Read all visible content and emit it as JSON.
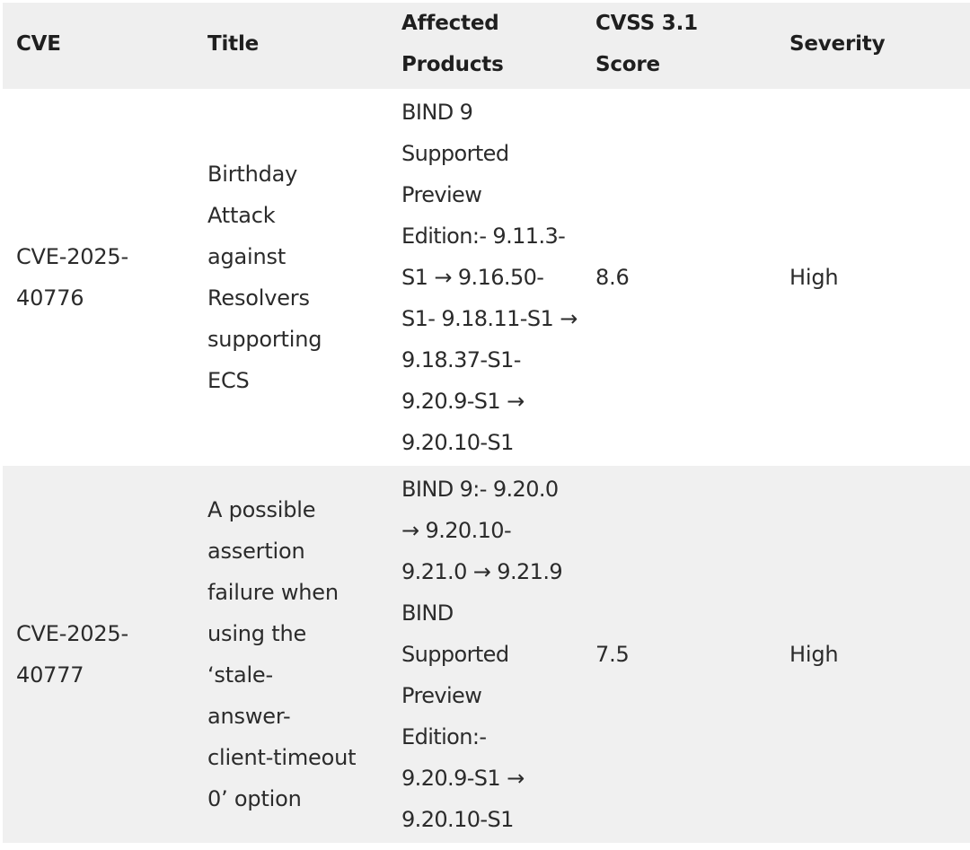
{
  "table": {
    "headers": {
      "cve": "CVE",
      "title": "Title",
      "products_1": "Affected",
      "products_2": "Products",
      "score_1": "CVSS 3.1",
      "score_2": "Score",
      "severity": "Severity"
    },
    "rows": [
      {
        "cve": [
          "CVE-2025-",
          "40776"
        ],
        "title": [
          "Birthday",
          "Attack",
          "against",
          "Resolvers",
          "supporting",
          "ECS"
        ],
        "products": [
          "BIND 9",
          "Supported",
          "Preview",
          "Edition:- 9.11.3-",
          "S1 → 9.16.50-",
          "S1- 9.18.11-S1 →",
          "9.18.37-S1-",
          "9.20.9-S1 →",
          "9.20.10-S1"
        ],
        "score": "8.6",
        "severity": "High"
      },
      {
        "cve": [
          "CVE-2025-",
          "40777"
        ],
        "title": [
          "A possible",
          "assertion",
          "failure when",
          "using the",
          "‘stale-",
          "answer-",
          "client-timeout",
          "0’ option"
        ],
        "products": [
          "BIND 9:- 9.20.0",
          "→ 9.20.10-",
          "9.21.0 → 9.21.9",
          "BIND",
          "Supported",
          "Preview",
          "Edition:-",
          "9.20.9-S1 →",
          "9.20.10-S1"
        ],
        "score": "7.5",
        "severity": "High"
      }
    ]
  }
}
